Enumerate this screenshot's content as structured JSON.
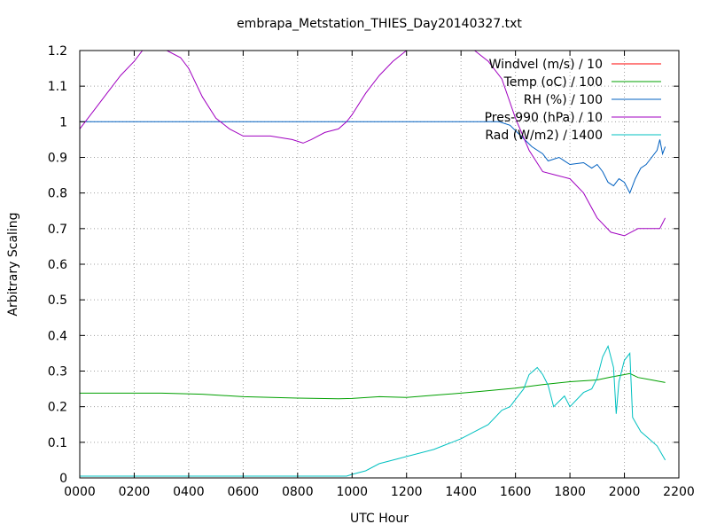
{
  "chart_data": {
    "type": "line",
    "title": "embrapa_Metstation_THIES_Day20140327.txt",
    "xlabel": "UTC Hour",
    "ylabel": "Arbitrary Scaling",
    "xlim": [
      0,
      2200
    ],
    "ylim": [
      0,
      1.2
    ],
    "x_ticks": [
      0,
      200,
      400,
      600,
      800,
      1000,
      1200,
      1400,
      1600,
      1800,
      2000,
      2200
    ],
    "x_tick_labels": [
      "0000",
      "0200",
      "0400",
      "0600",
      "0800",
      "1000",
      "1200",
      "1400",
      "1600",
      "1800",
      "2000",
      "2200"
    ],
    "y_ticks": [
      0,
      0.1,
      0.2,
      0.3,
      0.4,
      0.5,
      0.6,
      0.7,
      0.8,
      0.9,
      1,
      1.1,
      1.2
    ],
    "y_tick_labels": [
      "0",
      "0.1",
      "0.2",
      "0.3",
      "0.4",
      "0.5",
      "0.6",
      "0.7",
      "0.8",
      "0.9",
      "1",
      "1.1",
      "1.2"
    ],
    "grid": true,
    "legend_position": "top-right",
    "series": [
      {
        "name": "Windvel (m/s) / 10",
        "color": "#ff0000",
        "points": []
      },
      {
        "name": "Temp (oC) / 100",
        "color": "#00a000",
        "points": [
          [
            0,
            0.238
          ],
          [
            300,
            0.238
          ],
          [
            450,
            0.235
          ],
          [
            600,
            0.228
          ],
          [
            800,
            0.224
          ],
          [
            950,
            0.222
          ],
          [
            1000,
            0.223
          ],
          [
            1100,
            0.228
          ],
          [
            1200,
            0.226
          ],
          [
            1300,
            0.232
          ],
          [
            1400,
            0.238
          ],
          [
            1500,
            0.245
          ],
          [
            1600,
            0.252
          ],
          [
            1700,
            0.262
          ],
          [
            1800,
            0.27
          ],
          [
            1900,
            0.275
          ],
          [
            1950,
            0.283
          ],
          [
            2000,
            0.29
          ],
          [
            2020,
            0.293
          ],
          [
            2050,
            0.282
          ],
          [
            2100,
            0.275
          ],
          [
            2150,
            0.268
          ]
        ]
      },
      {
        "name": "RH (%) / 100",
        "color": "#0060c0",
        "points": [
          [
            0,
            1
          ],
          [
            1540,
            1
          ],
          [
            1580,
            0.99
          ],
          [
            1620,
            0.96
          ],
          [
            1660,
            0.93
          ],
          [
            1700,
            0.91
          ],
          [
            1720,
            0.89
          ],
          [
            1760,
            0.9
          ],
          [
            1800,
            0.88
          ],
          [
            1850,
            0.885
          ],
          [
            1880,
            0.87
          ],
          [
            1900,
            0.88
          ],
          [
            1920,
            0.86
          ],
          [
            1940,
            0.83
          ],
          [
            1960,
            0.82
          ],
          [
            1980,
            0.84
          ],
          [
            2000,
            0.83
          ],
          [
            2020,
            0.8
          ],
          [
            2040,
            0.84
          ],
          [
            2060,
            0.87
          ],
          [
            2080,
            0.88
          ],
          [
            2100,
            0.9
          ],
          [
            2120,
            0.92
          ],
          [
            2130,
            0.95
          ],
          [
            2140,
            0.91
          ],
          [
            2150,
            0.93
          ]
        ]
      },
      {
        "name": "Pres-990 (hPa) / 10",
        "color": "#a000c0",
        "points": [
          [
            0,
            0.98
          ],
          [
            50,
            1.03
          ],
          [
            100,
            1.08
          ],
          [
            150,
            1.13
          ],
          [
            200,
            1.17
          ],
          [
            230,
            1.2
          ],
          [
            320,
            1.2
          ],
          [
            370,
            1.18
          ],
          [
            400,
            1.15
          ],
          [
            450,
            1.07
          ],
          [
            500,
            1.01
          ],
          [
            550,
            0.98
          ],
          [
            600,
            0.96
          ],
          [
            700,
            0.96
          ],
          [
            780,
            0.95
          ],
          [
            820,
            0.94
          ],
          [
            850,
            0.95
          ],
          [
            900,
            0.97
          ],
          [
            950,
            0.98
          ],
          [
            980,
            1.0
          ],
          [
            1000,
            1.02
          ],
          [
            1050,
            1.08
          ],
          [
            1100,
            1.13
          ],
          [
            1150,
            1.17
          ],
          [
            1200,
            1.2
          ],
          [
            1450,
            1.2
          ],
          [
            1500,
            1.17
          ],
          [
            1550,
            1.12
          ],
          [
            1600,
            1.01
          ],
          [
            1650,
            0.92
          ],
          [
            1700,
            0.86
          ],
          [
            1750,
            0.85
          ],
          [
            1800,
            0.84
          ],
          [
            1850,
            0.8
          ],
          [
            1900,
            0.73
          ],
          [
            1950,
            0.69
          ],
          [
            2000,
            0.68
          ],
          [
            2050,
            0.7
          ],
          [
            2100,
            0.7
          ],
          [
            2130,
            0.7
          ],
          [
            2150,
            0.73
          ]
        ]
      },
      {
        "name": "Rad (W/m2) / 1400",
        "color": "#00c0c0",
        "points": [
          [
            0,
            0.005
          ],
          [
            980,
            0.005
          ],
          [
            1000,
            0.01
          ],
          [
            1050,
            0.02
          ],
          [
            1100,
            0.04
          ],
          [
            1150,
            0.05
          ],
          [
            1200,
            0.06
          ],
          [
            1300,
            0.08
          ],
          [
            1400,
            0.11
          ],
          [
            1450,
            0.13
          ],
          [
            1500,
            0.15
          ],
          [
            1550,
            0.19
          ],
          [
            1580,
            0.2
          ],
          [
            1600,
            0.22
          ],
          [
            1630,
            0.25
          ],
          [
            1650,
            0.29
          ],
          [
            1680,
            0.31
          ],
          [
            1700,
            0.29
          ],
          [
            1720,
            0.26
          ],
          [
            1740,
            0.2
          ],
          [
            1780,
            0.23
          ],
          [
            1800,
            0.2
          ],
          [
            1850,
            0.24
          ],
          [
            1880,
            0.25
          ],
          [
            1900,
            0.28
          ],
          [
            1920,
            0.34
          ],
          [
            1940,
            0.37
          ],
          [
            1960,
            0.31
          ],
          [
            1970,
            0.18
          ],
          [
            1980,
            0.27
          ],
          [
            2000,
            0.33
          ],
          [
            2020,
            0.35
          ],
          [
            2030,
            0.17
          ],
          [
            2060,
            0.13
          ],
          [
            2090,
            0.11
          ],
          [
            2120,
            0.09
          ],
          [
            2150,
            0.05
          ]
        ]
      }
    ]
  }
}
